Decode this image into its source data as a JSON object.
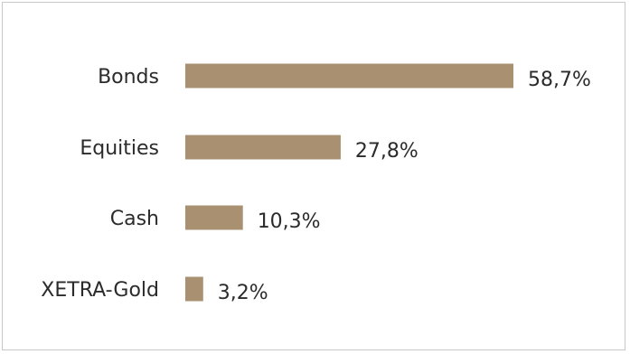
{
  "chart_data": {
    "type": "bar",
    "orientation": "horizontal",
    "categories": [
      "Bonds",
      "Equities",
      "Cash",
      "XETRA-Gold"
    ],
    "values": [
      58.7,
      27.8,
      10.3,
      3.2
    ],
    "value_labels": [
      "58,7%",
      "27,8%",
      "10,3%",
      "3,2%"
    ],
    "unit": "%",
    "title": "",
    "xlabel": "",
    "ylabel": "",
    "xlim": [
      0,
      58.7
    ],
    "grid": false,
    "bar_color": "#a89070"
  }
}
